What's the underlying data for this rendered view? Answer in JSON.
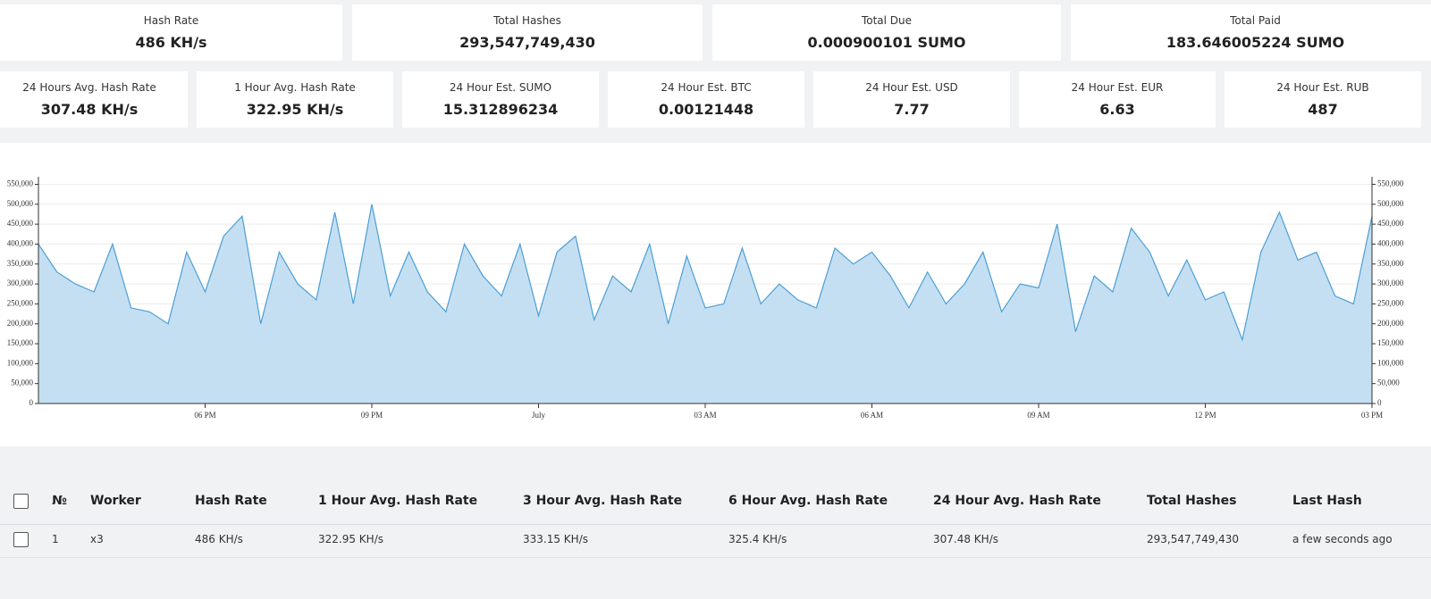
{
  "stats_top": [
    {
      "label": "Hash Rate",
      "value": "486 KH/s"
    },
    {
      "label": "Total Hashes",
      "value": "293,547,749,430"
    },
    {
      "label": "Total Due",
      "value": "0.000900101 SUMO"
    },
    {
      "label": "Total Paid",
      "value": "183.646005224 SUMO"
    }
  ],
  "stats_second": [
    {
      "label": "24 Hours Avg. Hash Rate",
      "value": "307.48 KH/s"
    },
    {
      "label": "1 Hour Avg. Hash Rate",
      "value": "322.95 KH/s"
    },
    {
      "label": "24 Hour Est. SUMO",
      "value": "15.312896234"
    },
    {
      "label": "24 Hour Est. BTC",
      "value": "0.00121448"
    },
    {
      "label": "24 Hour Est. USD",
      "value": "7.77"
    },
    {
      "label": "24 Hour Est. EUR",
      "value": "6.63"
    },
    {
      "label": "24 Hour Est. RUB",
      "value": "487"
    }
  ],
  "chart_data": {
    "type": "area",
    "color": "#4a9fd6",
    "fill": "#c5dff2",
    "grid": true,
    "x": [
      0,
      20,
      40,
      60,
      80,
      100,
      120,
      140,
      160,
      180,
      200,
      220,
      240,
      260,
      280,
      300,
      320,
      340,
      360,
      380,
      400,
      420,
      440,
      460,
      480,
      500,
      520,
      540,
      560,
      580,
      600,
      620,
      640,
      660,
      680,
      700,
      720,
      740,
      760,
      780,
      800,
      820,
      840,
      860,
      880,
      900,
      920,
      940,
      960,
      980,
      1000,
      1020,
      1040,
      1060,
      1080,
      1100,
      1120,
      1140,
      1160,
      1180,
      1200,
      1220,
      1240,
      1260,
      1280,
      1300,
      1320,
      1340,
      1360,
      1380,
      1400,
      1420,
      1440
    ],
    "values": [
      400000,
      330000,
      300000,
      280000,
      400000,
      240000,
      230000,
      200000,
      380000,
      280000,
      420000,
      470000,
      200000,
      380000,
      300000,
      260000,
      480000,
      250000,
      500000,
      270000,
      380000,
      280000,
      230000,
      400000,
      320000,
      270000,
      400000,
      220000,
      380000,
      420000,
      210000,
      320000,
      280000,
      400000,
      200000,
      370000,
      240000,
      250000,
      390000,
      250000,
      300000,
      260000,
      240000,
      390000,
      350000,
      380000,
      320000,
      240000,
      330000,
      250000,
      300000,
      380000,
      230000,
      300000,
      290000,
      450000,
      180000,
      320000,
      280000,
      440000,
      380000,
      270000,
      360000,
      260000,
      280000,
      160000,
      380000,
      480000,
      360000,
      380000,
      270000,
      250000,
      470000
    ],
    "xlim": [
      0,
      1440
    ],
    "xticks": [
      {
        "value": 180,
        "label": "06 PM"
      },
      {
        "value": 360,
        "label": "09 PM"
      },
      {
        "value": 540,
        "label": "July"
      },
      {
        "value": 720,
        "label": "03 AM"
      },
      {
        "value": 900,
        "label": "06 AM"
      },
      {
        "value": 1080,
        "label": "09 AM"
      },
      {
        "value": 1260,
        "label": "12 PM"
      },
      {
        "value": 1440,
        "label": "03 PM"
      }
    ],
    "ylim": [
      0,
      560000
    ],
    "yticks": [
      0,
      {
        "value": 50000,
        "label": "50,000"
      },
      {
        "value": 100000,
        "label": "100,000"
      },
      {
        "value": 150000,
        "label": "150,000"
      },
      {
        "value": 200000,
        "label": "200,000"
      },
      {
        "value": 250000,
        "label": "250,000"
      },
      {
        "value": 300000,
        "label": "300,000"
      },
      {
        "value": 350000,
        "label": "350,000"
      },
      {
        "value": 400000,
        "label": "400,000"
      },
      {
        "value": 450000,
        "label": "450,000"
      },
      {
        "value": 500000,
        "label": "500,000"
      },
      {
        "value": 550000,
        "label": "550,000"
      }
    ]
  },
  "table": {
    "columns": [
      "№",
      "Worker",
      "Hash Rate",
      "1 Hour Avg. Hash Rate",
      "3 Hour Avg. Hash Rate",
      "6 Hour Avg. Hash Rate",
      "24 Hour Avg. Hash Rate",
      "Total Hashes",
      "Last Hash"
    ],
    "rows": [
      [
        "1",
        "x3",
        "486 KH/s",
        "322.95 KH/s",
        "333.15 KH/s",
        "325.4 KH/s",
        "307.48 KH/s",
        "293,547,749,430",
        "a few seconds ago"
      ]
    ]
  }
}
